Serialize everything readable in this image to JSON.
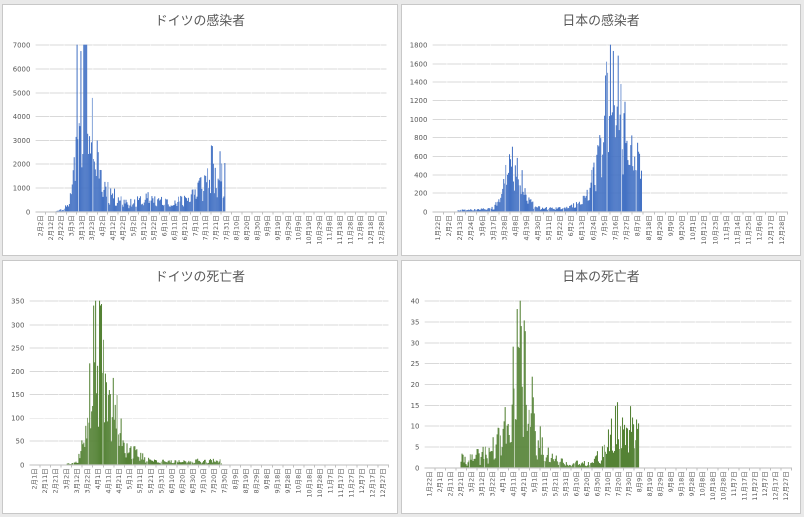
{
  "colors": {
    "infection_bars": "#4472c4",
    "death_bars": "#548235"
  },
  "chart_data": [
    {
      "type": "bar",
      "title": "ドイツの感染者",
      "color_key": "infection_bars",
      "ylim": [
        0,
        7000
      ],
      "yticks": [
        "0",
        "1000",
        "2000",
        "3000",
        "4000",
        "5000",
        "6000",
        "7000"
      ],
      "grid": true,
      "x_tick_labels": [
        "2月2日",
        "2月12日",
        "2月22日",
        "3月3日",
        "3月13日",
        "3月23日",
        "4月2日",
        "4月12日",
        "4月22日",
        "5月2日",
        "5月12日",
        "5月22日",
        "6月1日",
        "6月11日",
        "6月21日",
        "7月1日",
        "7月11日",
        "7月21日",
        "7月31日",
        "8月10日",
        "8月20日",
        "8月30日",
        "9月9日",
        "9月19日",
        "9月29日",
        "10月9日",
        "10月19日",
        "10月29日",
        "11月8日",
        "11月18日",
        "11月28日",
        "12月8日",
        "12月18日",
        "12月28日"
      ],
      "series_profile": [
        [
          0,
          0
        ],
        [
          20,
          0
        ],
        [
          29,
          100
        ],
        [
          33,
          300
        ],
        [
          37,
          800
        ],
        [
          39,
          1500
        ],
        [
          41,
          3500
        ],
        [
          43,
          5900
        ],
        [
          45,
          4500
        ],
        [
          47,
          6300
        ],
        [
          49,
          5000
        ],
        [
          51,
          6200
        ],
        [
          53,
          6000
        ],
        [
          55,
          5000
        ],
        [
          57,
          4200
        ],
        [
          59,
          3600
        ],
        [
          61,
          2600
        ],
        [
          63,
          2200
        ],
        [
          66,
          2000
        ],
        [
          70,
          1200
        ],
        [
          75,
          1000
        ],
        [
          80,
          700
        ],
        [
          90,
          500
        ],
        [
          100,
          350
        ],
        [
          110,
          500
        ],
        [
          120,
          600
        ],
        [
          130,
          450
        ],
        [
          140,
          400
        ],
        [
          150,
          450
        ],
        [
          160,
          700
        ],
        [
          168,
          1000
        ],
        [
          175,
          1300
        ],
        [
          180,
          1600
        ],
        [
          183,
          2300
        ],
        [
          186,
          1200
        ],
        [
          190,
          1500
        ],
        [
          194,
          2000
        ],
        [
          196,
          1000
        ],
        [
          197,
          1500
        ],
        [
          198,
          0
        ],
        [
          365,
          0
        ]
      ]
    },
    {
      "type": "bar",
      "title": "日本の感染者",
      "color_key": "infection_bars",
      "ylim": [
        0,
        1800
      ],
      "yticks": [
        "0",
        "200",
        "400",
        "600",
        "800",
        "1000",
        "1200",
        "1400",
        "1600",
        "1800"
      ],
      "grid": true,
      "x_tick_labels": [
        "1月22日",
        "2月2日",
        "2月13日",
        "2月24日",
        "3月6日",
        "3月17日",
        "3月28日",
        "4月8日",
        "4月19日",
        "4月30日",
        "5月11日",
        "5月22日",
        "6月2日",
        "6月13日",
        "6月24日",
        "7月5日",
        "7月16日",
        "7月27日",
        "8月7日",
        "8月18日",
        "8月29日",
        "9月9日",
        "9月20日",
        "10月1日",
        "10月12日",
        "10月23日",
        "11月3日",
        "11月14日",
        "11月25日",
        "12月6日",
        "12月17日",
        "12月28日"
      ],
      "series_profile": [
        [
          0,
          0
        ],
        [
          25,
          0
        ],
        [
          26,
          15
        ],
        [
          40,
          20
        ],
        [
          55,
          30
        ],
        [
          62,
          40
        ],
        [
          67,
          100
        ],
        [
          70,
          200
        ],
        [
          73,
          350
        ],
        [
          76,
          500
        ],
        [
          79,
          650
        ],
        [
          81,
          690
        ],
        [
          83,
          600
        ],
        [
          86,
          550
        ],
        [
          89,
          420
        ],
        [
          93,
          300
        ],
        [
          97,
          180
        ],
        [
          101,
          100
        ],
        [
          105,
          60
        ],
        [
          110,
          40
        ],
        [
          120,
          35
        ],
        [
          130,
          40
        ],
        [
          140,
          50
        ],
        [
          150,
          90
        ],
        [
          158,
          150
        ],
        [
          163,
          300
        ],
        [
          167,
          500
        ],
        [
          171,
          800
        ],
        [
          175,
          1000
        ],
        [
          178,
          1300
        ],
        [
          182,
          1450
        ],
        [
          185,
          1580
        ],
        [
          188,
          1600
        ],
        [
          190,
          1300
        ],
        [
          194,
          1100
        ],
        [
          198,
          950
        ],
        [
          202,
          800
        ],
        [
          206,
          650
        ],
        [
          210,
          600
        ],
        [
          213,
          500
        ],
        [
          215,
          400
        ],
        [
          216,
          0
        ],
        [
          365,
          0
        ]
      ]
    },
    {
      "type": "bar",
      "title": "ドイツの死亡者",
      "color_key": "death_bars",
      "ylim": [
        0,
        350
      ],
      "yticks": [
        "0",
        "50",
        "100",
        "150",
        "200",
        "250",
        "300",
        "350"
      ],
      "grid": true,
      "x_tick_labels": [
        "2月1日",
        "2月11日",
        "2月21日",
        "3月2日",
        "3月12日",
        "3月22日",
        "4月1日",
        "4月11日",
        "4月21日",
        "5月1日",
        "5月11日",
        "5月21日",
        "5月31日",
        "6月10日",
        "6月20日",
        "6月30日",
        "7月10日",
        "7月20日",
        "7月30日",
        "8月9日",
        "8月19日",
        "8月29日",
        "9月8日",
        "9月18日",
        "9月28日",
        "10月8日",
        "10月18日",
        "10月28日",
        "11月7日",
        "11月17日",
        "11月27日",
        "12月7日",
        "12月17日",
        "12月27日"
      ],
      "series_profile": [
        [
          0,
          0
        ],
        [
          37,
          0
        ],
        [
          38,
          2
        ],
        [
          48,
          5
        ],
        [
          52,
          30
        ],
        [
          55,
          60
        ],
        [
          58,
          100
        ],
        [
          61,
          150
        ],
        [
          64,
          200
        ],
        [
          66,
          240
        ],
        [
          68,
          280
        ],
        [
          70,
          315
        ],
        [
          72,
          280
        ],
        [
          74,
          250
        ],
        [
          77,
          230
        ],
        [
          80,
          190
        ],
        [
          83,
          150
        ],
        [
          86,
          120
        ],
        [
          90,
          90
        ],
        [
          95,
          60
        ],
        [
          100,
          40
        ],
        [
          105,
          30
        ],
        [
          110,
          20
        ],
        [
          120,
          12
        ],
        [
          130,
          8
        ],
        [
          140,
          6
        ],
        [
          150,
          6
        ],
        [
          160,
          6
        ],
        [
          170,
          8
        ],
        [
          180,
          8
        ],
        [
          190,
          8
        ],
        [
          195,
          8
        ],
        [
          196,
          0
        ],
        [
          365,
          0
        ]
      ]
    },
    {
      "type": "bar",
      "title": "日本の死亡者",
      "color_key": "death_bars",
      "ylim": [
        0,
        40
      ],
      "yticks": [
        "0",
        "5",
        "10",
        "15",
        "20",
        "25",
        "30",
        "35",
        "40"
      ],
      "grid": true,
      "x_tick_labels": [
        "1月22日",
        "2月1日",
        "2月11日",
        "2月21日",
        "3月2日",
        "3月12日",
        "3月22日",
        "4月1日",
        "4月11日",
        "4月21日",
        "5月1日",
        "5月11日",
        "5月21日",
        "5月31日",
        "6月10日",
        "6月20日",
        "6月30日",
        "7月10日",
        "7月20日",
        "7月30日",
        "8月9日",
        "8月19日",
        "8月29日",
        "9月8日",
        "9月18日",
        "9月28日",
        "10月8日",
        "10月18日",
        "10月28日",
        "11月7日",
        "11月17日",
        "11月27日",
        "12月7日",
        "12月17日",
        "12月27日"
      ],
      "series_profile": [
        [
          0,
          0
        ],
        [
          35,
          0
        ],
        [
          36,
          2
        ],
        [
          45,
          2
        ],
        [
          55,
          3
        ],
        [
          65,
          4
        ],
        [
          75,
          7
        ],
        [
          80,
          10
        ],
        [
          85,
          15
        ],
        [
          90,
          20
        ],
        [
          95,
          28
        ],
        [
          100,
          24
        ],
        [
          103,
          17
        ],
        [
          106,
          14
        ],
        [
          110,
          11
        ],
        [
          113,
          8
        ],
        [
          116,
          6
        ],
        [
          120,
          4
        ],
        [
          130,
          2
        ],
        [
          140,
          1
        ],
        [
          150,
          1
        ],
        [
          160,
          1
        ],
        [
          170,
          2
        ],
        [
          175,
          3
        ],
        [
          180,
          5
        ],
        [
          185,
          7
        ],
        [
          190,
          9
        ],
        [
          195,
          11
        ],
        [
          200,
          12
        ],
        [
          205,
          12
        ],
        [
          210,
          11
        ],
        [
          213,
          10
        ],
        [
          214,
          0
        ],
        [
          365,
          0
        ]
      ]
    }
  ]
}
